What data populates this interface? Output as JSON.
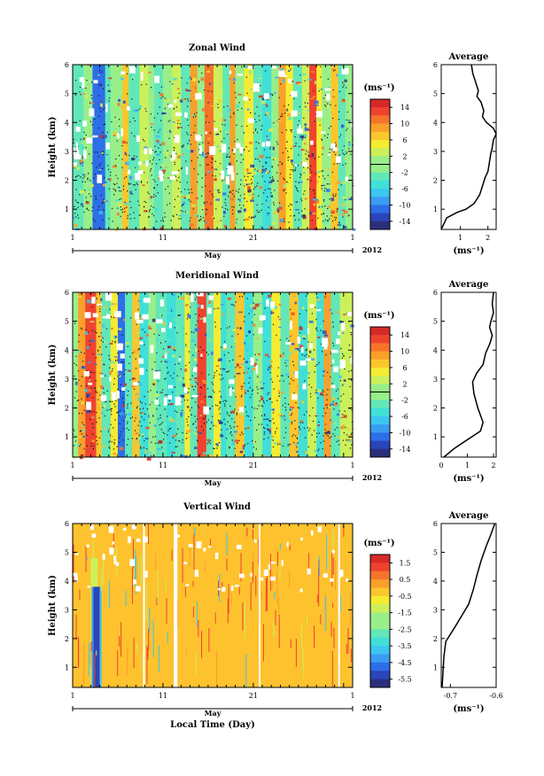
{
  "chart_data": [
    {
      "type": "heatmap",
      "title": "Zonal Wind",
      "ylabel": "Height (km)",
      "xlabel": "",
      "x_ticks": [
        "1",
        "11",
        "21",
        "1"
      ],
      "y_ticks": [
        "1",
        "2",
        "3",
        "4",
        "5",
        "6"
      ],
      "ylim": [
        0.3,
        6
      ],
      "month_label": "May",
      "year_label": "2012",
      "colorbar": {
        "unit": "(ms⁻¹)",
        "ticks": [
          "14",
          "10",
          "6",
          "2",
          "-2",
          "-6",
          "-10",
          "-14"
        ],
        "range": [
          -16,
          16
        ]
      },
      "profile": {
        "title": "Average",
        "xlabel": "(ms⁻¹)",
        "x_ticks": [
          "1",
          "2"
        ],
        "xlim": [
          0.3,
          2.3
        ],
        "y_ticks": [
          "1",
          "2",
          "3",
          "4",
          "5",
          "6"
        ],
        "ylim": [
          0.3,
          6
        ],
        "points": [
          [
            0.3,
            0.3
          ],
          [
            0.5,
            0.7
          ],
          [
            0.9,
            0.9
          ],
          [
            1.2,
            1.0
          ],
          [
            1.5,
            1.2
          ],
          [
            1.7,
            1.5
          ],
          [
            1.8,
            1.8
          ],
          [
            1.9,
            2.1
          ],
          [
            2.0,
            2.3
          ],
          [
            2.05,
            2.6
          ],
          [
            2.1,
            2.9
          ],
          [
            2.15,
            3.1
          ],
          [
            2.2,
            3.4
          ],
          [
            2.3,
            3.6
          ],
          [
            2.2,
            3.8
          ],
          [
            1.95,
            4.0
          ],
          [
            1.8,
            4.2
          ],
          [
            1.85,
            4.4
          ],
          [
            1.75,
            4.7
          ],
          [
            1.6,
            4.9
          ],
          [
            1.65,
            5.1
          ],
          [
            1.55,
            5.4
          ],
          [
            1.45,
            5.7
          ],
          [
            1.4,
            6.0
          ]
        ]
      }
    },
    {
      "type": "heatmap",
      "title": "Meridional Wind",
      "ylabel": "Height (km)",
      "xlabel": "",
      "x_ticks": [
        "1",
        "11",
        "21",
        "1"
      ],
      "y_ticks": [
        "1",
        "2",
        "3",
        "4",
        "5",
        "6"
      ],
      "ylim": [
        0.3,
        6
      ],
      "month_label": "May",
      "year_label": "2012",
      "colorbar": {
        "unit": "(ms⁻¹)",
        "ticks": [
          "14",
          "10",
          "6",
          "2",
          "-2",
          "-6",
          "-10",
          "-14"
        ],
        "range": [
          -16,
          16
        ]
      },
      "profile": {
        "title": "Average",
        "xlabel": "(ms⁻¹)",
        "x_ticks": [
          "0",
          "1",
          "2"
        ],
        "xlim": [
          0,
          2.1
        ],
        "y_ticks": [
          "1",
          "2",
          "3",
          "4",
          "5",
          "6"
        ],
        "ylim": [
          0.3,
          6
        ],
        "points": [
          [
            0.1,
            0.3
          ],
          [
            0.5,
            0.6
          ],
          [
            1.0,
            0.9
          ],
          [
            1.5,
            1.2
          ],
          [
            1.6,
            1.5
          ],
          [
            1.4,
            2.0
          ],
          [
            1.25,
            2.5
          ],
          [
            1.2,
            2.9
          ],
          [
            1.35,
            3.2
          ],
          [
            1.6,
            3.5
          ],
          [
            1.7,
            3.9
          ],
          [
            1.85,
            4.2
          ],
          [
            1.95,
            4.5
          ],
          [
            1.85,
            4.8
          ],
          [
            1.9,
            5.0
          ],
          [
            2.0,
            5.3
          ],
          [
            1.95,
            5.6
          ],
          [
            2.0,
            6.0
          ]
        ]
      }
    },
    {
      "type": "heatmap",
      "title": "Vertical Wind",
      "ylabel": "Height (km)",
      "xlabel": "Local Time (Day)",
      "x_ticks": [
        "1",
        "11",
        "21",
        "1"
      ],
      "y_ticks": [
        "1",
        "2",
        "3",
        "4",
        "5",
        "6"
      ],
      "ylim": [
        0.3,
        6
      ],
      "month_label": "May",
      "year_label": "2012",
      "colorbar": {
        "unit": "(ms⁻¹)",
        "ticks": [
          "1.5",
          "0.5",
          "-0.5",
          "-1.5",
          "-2.5",
          "-3.5",
          "-4.5",
          "-5.5"
        ],
        "range": [
          -6,
          2
        ]
      },
      "profile": {
        "title": "Average",
        "xlabel": "(ms⁻¹)",
        "x_ticks": [
          "-0.7",
          "-0.6"
        ],
        "xlim": [
          -0.72,
          -0.6
        ],
        "y_ticks": [
          "1",
          "2",
          "3",
          "4",
          "5",
          "6"
        ],
        "ylim": [
          0.3,
          6
        ],
        "points": [
          [
            -0.718,
            0.3
          ],
          [
            -0.716,
            0.9
          ],
          [
            -0.714,
            1.4
          ],
          [
            -0.71,
            1.9
          ],
          [
            -0.702,
            2.1
          ],
          [
            -0.69,
            2.4
          ],
          [
            -0.675,
            2.8
          ],
          [
            -0.66,
            3.2
          ],
          [
            -0.65,
            3.7
          ],
          [
            -0.642,
            4.2
          ],
          [
            -0.633,
            4.7
          ],
          [
            -0.622,
            5.2
          ],
          [
            -0.612,
            5.6
          ],
          [
            -0.603,
            6.0
          ]
        ]
      }
    }
  ],
  "colors": {
    "scale": [
      "#2b2f7a",
      "#2a45b8",
      "#2e6ee8",
      "#3a9cf2",
      "#3cc6f0",
      "#40e0d8",
      "#62e7b8",
      "#98ef8a",
      "#ccf05a",
      "#f5ec32",
      "#fbc62c",
      "#f9a02a",
      "#f6742a",
      "#ef4330",
      "#d42a28"
    ],
    "vertical_background": "#fdc22e"
  }
}
